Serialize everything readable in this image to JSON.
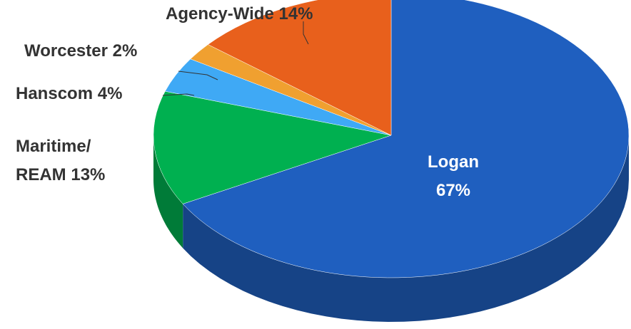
{
  "chart_data": {
    "type": "pie",
    "categories": [
      "Logan",
      "Maritime/ REAM",
      "Hanscom",
      "Worcester",
      "Agency-Wide"
    ],
    "values": [
      67,
      13,
      4,
      2,
      14
    ],
    "value_labels": [
      "67%",
      "13%",
      "4%",
      "2%",
      "14%"
    ],
    "colors": [
      "#1f5fbf",
      "#00b050",
      "#3fa9f5",
      "#f0a030",
      "#e8601c"
    ]
  }
}
